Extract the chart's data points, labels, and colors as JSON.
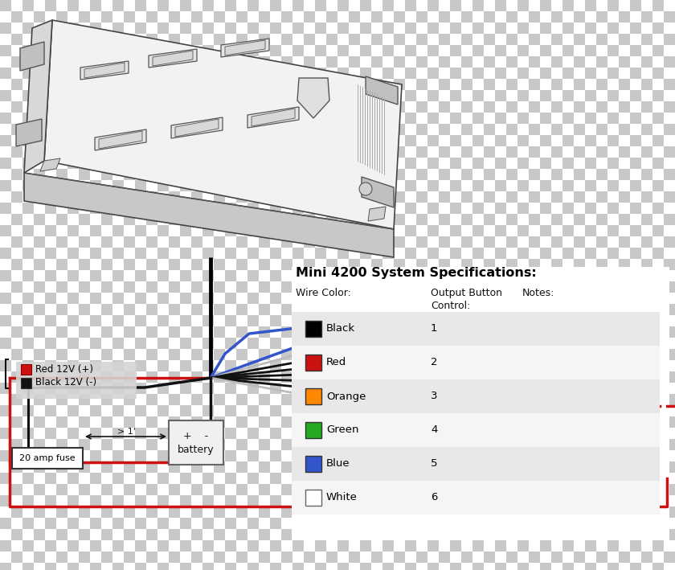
{
  "title": "Mini 4200 System Specifications:",
  "rows": [
    {
      "name": "Black",
      "color": "#000000",
      "number": "1",
      "bg": "#e8e8e8",
      "wire": "#000000"
    },
    {
      "name": "Red",
      "color": "#cc1111",
      "number": "2",
      "bg": "#f5f5f5",
      "wire": "#cc1111"
    },
    {
      "name": "Orange",
      "color": "#ff8800",
      "number": "3",
      "bg": "#e8e8e8",
      "wire": "#ff8800"
    },
    {
      "name": "Green",
      "color": "#22aa22",
      "number": "4",
      "bg": "#f5f5f5",
      "wire": "#22aa22"
    },
    {
      "name": "Blue",
      "color": "#3355cc",
      "number": "5",
      "bg": "#e8e8e8",
      "wire": "#3355cc"
    },
    {
      "name": "White",
      "color": "#ffffff",
      "number": "6",
      "bg": "#f5f5f5",
      "wire": "#cccccc"
    }
  ],
  "bg": "#ffffff",
  "checker1": "#c8c8c8",
  "checker2": "#ffffff",
  "checker_size": 14
}
